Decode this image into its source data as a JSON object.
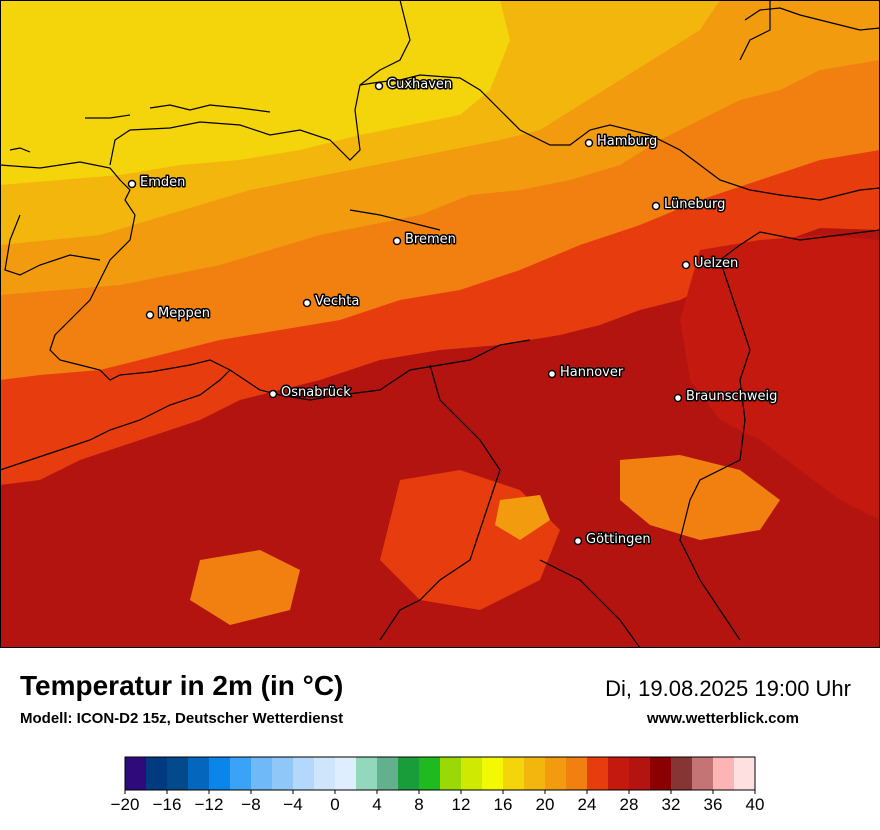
{
  "title": "Temperatur in 2m (in °C)",
  "model": "Modell: ICON-D2 15z, Deutscher Wetterdienst",
  "datetime": "Di, 19.08.2025 19:00 Uhr",
  "website": "www.wetterblick.com",
  "cities": [
    {
      "name": "Cuxhaven"
    },
    {
      "name": "Hamburg"
    },
    {
      "name": "Emden"
    },
    {
      "name": "Lüneburg"
    },
    {
      "name": "Bremen"
    },
    {
      "name": "Uelzen"
    },
    {
      "name": "Vechta"
    },
    {
      "name": "Meppen"
    },
    {
      "name": "Osnabrück"
    },
    {
      "name": "Hannover"
    },
    {
      "name": "Braunschweig"
    },
    {
      "name": "Göttingen"
    }
  ],
  "legend": {
    "min": -20,
    "max": 40,
    "step": 2,
    "tick_labels": [
      "−20",
      "−16",
      "−12",
      "−8",
      "−4",
      "0",
      "4",
      "8",
      "12",
      "16",
      "20",
      "24",
      "28",
      "32",
      "36",
      "40"
    ],
    "colors": [
      "#2e0a7a",
      "#013a7e",
      "#024a8c",
      "#0467bd",
      "#0a86ea",
      "#3aa3f6",
      "#6fb9f8",
      "#8fc7f8",
      "#b4d8fb",
      "#cfe5fc",
      "#dfeefe",
      "#93d8bd",
      "#63b08e",
      "#199c3a",
      "#1fba1f",
      "#9ad806",
      "#cfe902",
      "#f2f900",
      "#f4d40b",
      "#f3b60d",
      "#f29b0e",
      "#f18011",
      "#e63c0e",
      "#c4190f",
      "#b3140f",
      "#8b0000",
      "#863434",
      "#c47474",
      "#fcb4b4",
      "#ffe0e0"
    ]
  }
}
